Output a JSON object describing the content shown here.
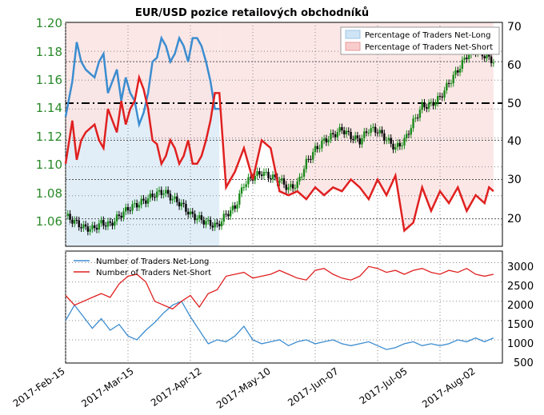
{
  "chart_data": [
    {
      "type": "line",
      "title": "EUR/USD pozice retailových obchodníků",
      "x_ticks": [
        "2017-Feb-15",
        "2017-Mar-15",
        "2017-Apr-12",
        "2017-May-10",
        "2017-Jun-07",
        "2017-Jul-05",
        "2017-Aug-02"
      ],
      "left_axis": {
        "ticks": [
          "1.20",
          "1.18",
          "1.16",
          "1.14",
          "1.12",
          "1.10",
          "1.08",
          "1.06"
        ],
        "ylim": [
          1.045,
          1.2
        ]
      },
      "right_axis": {
        "ticks": [
          "70",
          "60",
          "50",
          "40",
          "30",
          "20"
        ],
        "ylim": [
          13,
          70
        ]
      },
      "legend": [
        "Percentage of Traders Net-Long",
        "Percentage of Traders Net-Short"
      ],
      "reference_line": 50,
      "grid": true,
      "colors": {
        "net_long": "#3c8dd0",
        "net_short": "#e02020",
        "candle_up": "#1a8a1a",
        "candle_down": "#000000",
        "axis_tick": "#2a8a2a"
      },
      "eurusd_close": {
        "days": [
          0,
          4,
          8,
          12,
          16,
          20,
          24,
          28,
          32,
          36,
          40,
          44,
          48,
          52,
          56,
          60,
          64,
          68,
          72,
          76,
          80,
          84,
          88,
          92,
          96,
          100,
          104,
          108,
          112,
          116,
          120,
          124,
          128,
          132,
          136,
          140,
          144,
          148,
          152,
          156,
          160,
          164,
          168,
          172,
          176,
          180,
          184,
          188,
          192
        ],
        "values": [
          1.066,
          1.062,
          1.058,
          1.057,
          1.061,
          1.06,
          1.066,
          1.071,
          1.074,
          1.077,
          1.081,
          1.083,
          1.078,
          1.074,
          1.067,
          1.064,
          1.061,
          1.059,
          1.067,
          1.072,
          1.088,
          1.093,
          1.096,
          1.093,
          1.091,
          1.085,
          1.088,
          1.103,
          1.112,
          1.118,
          1.122,
          1.126,
          1.121,
          1.118,
          1.126,
          1.125,
          1.119,
          1.113,
          1.118,
          1.131,
          1.142,
          1.143,
          1.148,
          1.158,
          1.167,
          1.177,
          1.181,
          1.177,
          1.173
        ]
      },
      "net_long_pct": {
        "days": [
          0,
          3,
          5,
          7,
          9,
          11,
          13,
          15,
          17,
          19,
          21,
          23,
          25,
          27,
          29,
          31,
          33,
          35,
          37,
          39,
          41,
          43,
          45,
          47,
          49,
          51,
          53,
          55,
          57,
          59,
          61,
          63,
          65,
          67,
          69
        ],
        "values": [
          46,
          55,
          65,
          60,
          58,
          57,
          56,
          60,
          62,
          52,
          55,
          58,
          50,
          56,
          52,
          50,
          44,
          47,
          52,
          60,
          61,
          66,
          64,
          60,
          62,
          66,
          64,
          60,
          66,
          66,
          64,
          60,
          55,
          48,
          48
        ]
      },
      "net_short_pct": {
        "days": [
          0,
          3,
          5,
          7,
          9,
          11,
          13,
          15,
          17,
          19,
          21,
          23,
          25,
          27,
          29,
          31,
          33,
          35,
          37,
          39,
          41,
          43,
          45,
          47,
          49,
          51,
          53,
          55,
          57,
          59,
          61,
          63,
          65,
          67,
          69,
          72,
          76,
          80,
          84,
          88,
          92,
          96,
          100,
          104,
          108,
          112,
          116,
          120,
          124,
          128,
          132,
          136,
          140,
          144,
          148,
          152,
          156,
          160,
          164,
          168,
          172,
          176,
          180,
          184,
          188,
          190,
          192
        ],
        "values": [
          34,
          45,
          35,
          40,
          42,
          43,
          44,
          40,
          38,
          48,
          45,
          42,
          50,
          44,
          48,
          50,
          56,
          53,
          48,
          40,
          39,
          34,
          36,
          40,
          38,
          34,
          36,
          40,
          34,
          34,
          36,
          40,
          45,
          52,
          52,
          28,
          32,
          38,
          30,
          40,
          38,
          27,
          26,
          27,
          25,
          28,
          26,
          28,
          27,
          30,
          28,
          25,
          30,
          26,
          31,
          17,
          19,
          28,
          22,
          27,
          24,
          28,
          22,
          26,
          24,
          28,
          27
        ]
      },
      "num_net_long": {
        "days": [
          0,
          4,
          8,
          12,
          16,
          20,
          24,
          28,
          32,
          36,
          40,
          44,
          48,
          52,
          56,
          60,
          64,
          68,
          72,
          76,
          80,
          84,
          88,
          92,
          96,
          100,
          104,
          108,
          112,
          116,
          120,
          124,
          128,
          132,
          136,
          140,
          144,
          148,
          152,
          156,
          160,
          164,
          168,
          172,
          176,
          180,
          184,
          188,
          192
        ],
        "values": [
          1500,
          1900,
          1600,
          1300,
          1550,
          1250,
          1400,
          1100,
          1000,
          1250,
          1450,
          1700,
          1900,
          2000,
          1600,
          1250,
          900,
          1000,
          950,
          1100,
          1350,
          1000,
          900,
          950,
          1000,
          850,
          950,
          1000,
          900,
          950,
          1000,
          900,
          850,
          900,
          950,
          850,
          750,
          800,
          900,
          950,
          850,
          900,
          850,
          900,
          1000,
          950,
          1050,
          950,
          1050
        ]
      },
      "num_net_short": {
        "days": [
          0,
          4,
          8,
          12,
          16,
          20,
          24,
          28,
          32,
          36,
          40,
          44,
          48,
          52,
          56,
          60,
          64,
          68,
          72,
          76,
          80,
          84,
          88,
          92,
          96,
          100,
          104,
          108,
          112,
          116,
          120,
          124,
          128,
          132,
          136,
          140,
          144,
          148,
          152,
          156,
          160,
          164,
          168,
          172,
          176,
          180,
          184,
          188,
          192
        ],
        "values": [
          2150,
          1900,
          2000,
          2100,
          2200,
          2100,
          2450,
          2650,
          2700,
          2500,
          2000,
          1900,
          1800,
          2000,
          2150,
          1850,
          2200,
          2300,
          2650,
          2700,
          2750,
          2600,
          2650,
          2700,
          2800,
          2700,
          2600,
          2550,
          2800,
          2850,
          2700,
          2600,
          2550,
          2650,
          2900,
          2850,
          2750,
          2800,
          2700,
          2800,
          2850,
          2750,
          2700,
          2800,
          2750,
          2850,
          2700,
          2650,
          2700
        ]
      },
      "lower_left_ticks": [
        "3000",
        "2500",
        "2000",
        "1500",
        "1000",
        "500"
      ],
      "lower_legend": [
        "Number of Traders Net-Long",
        "Number of Traders Net-Short"
      ]
    }
  ]
}
